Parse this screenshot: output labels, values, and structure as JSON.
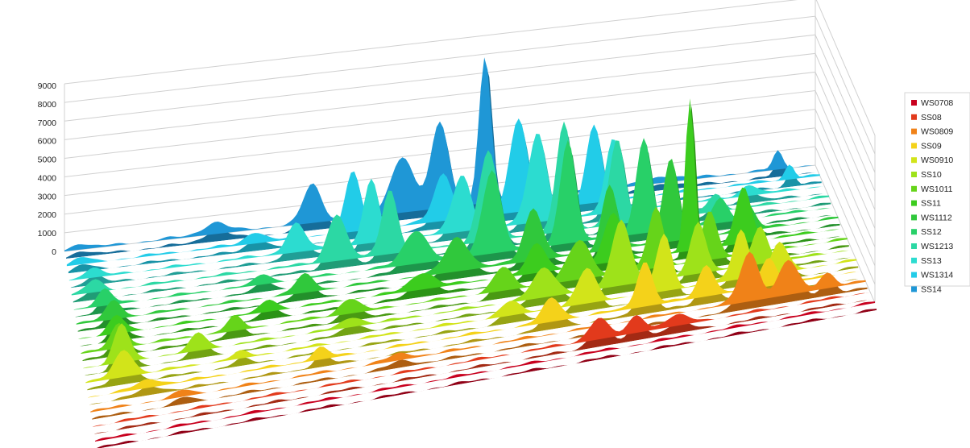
{
  "colors": {
    "WS0708": "#c8001e",
    "SS08": "#e23a1c",
    "WS0809": "#f08218",
    "SS09": "#f4d21a",
    "WS0910": "#d2e41a",
    "SS10": "#9ee21a",
    "WS1011": "#66d41a",
    "SS11": "#3ccc1e",
    "WS1112": "#30c83c",
    "SS12": "#28d068",
    "WS1213": "#2cd8a4",
    "SS13": "#2cdcd0",
    "WS1314": "#22cce8",
    "SS14": "#1f97d6"
  },
  "chart_data": {
    "type": "area",
    "subtype": "3d-ribbon",
    "title": "",
    "xlabel": "",
    "ylabel": "",
    "ylim": [
      0,
      9000
    ],
    "yticks": [
      0,
      1000,
      2000,
      3000,
      4000,
      5000,
      6000,
      7000,
      8000,
      9000
    ],
    "grid": true,
    "legend": "right",
    "series": [
      {
        "name": "WS0708",
        "peaks": []
      },
      {
        "name": "SS08",
        "peaks": [
          [
            0.65,
            1100,
            0.012
          ],
          [
            0.7,
            900,
            0.01
          ],
          [
            0.75,
            500,
            0.015
          ]
        ]
      },
      {
        "name": "WS0809",
        "peaks": [
          [
            0.12,
            300,
            0.01
          ],
          [
            0.4,
            300,
            0.015
          ],
          [
            0.85,
            2600,
            0.012
          ],
          [
            0.9,
            1800,
            0.012
          ],
          [
            0.95,
            800,
            0.01
          ]
        ]
      },
      {
        "name": "SS09",
        "peaks": [
          [
            0.08,
            400,
            0.015
          ],
          [
            0.3,
            600,
            0.01
          ],
          [
            0.6,
            1200,
            0.012
          ],
          [
            0.72,
            2400,
            0.01
          ],
          [
            0.8,
            1700,
            0.01
          ],
          [
            0.88,
            1500,
            0.01
          ]
        ]
      },
      {
        "name": "WS0910",
        "peaks": [
          [
            0.05,
            1400,
            0.012
          ],
          [
            0.2,
            300,
            0.01
          ],
          [
            0.55,
            700,
            0.012
          ],
          [
            0.65,
            1800,
            0.012
          ],
          [
            0.75,
            3000,
            0.01
          ],
          [
            0.85,
            2600,
            0.01
          ],
          [
            0.9,
            1600,
            0.01
          ]
        ]
      },
      {
        "name": "SS10",
        "peaks": [
          [
            0.05,
            2000,
            0.01
          ],
          [
            0.15,
            900,
            0.01
          ],
          [
            0.35,
            500,
            0.012
          ],
          [
            0.6,
            1500,
            0.015
          ],
          [
            0.7,
            3500,
            0.012
          ],
          [
            0.8,
            2800,
            0.01
          ],
          [
            0.88,
            2000,
            0.01
          ]
        ]
      },
      {
        "name": "WS1011",
        "peaks": [
          [
            0.05,
            1300,
            0.01
          ],
          [
            0.2,
            700,
            0.01
          ],
          [
            0.35,
            800,
            0.012
          ],
          [
            0.55,
            1200,
            0.012
          ],
          [
            0.65,
            2000,
            0.015
          ],
          [
            0.75,
            3200,
            0.01
          ],
          [
            0.82,
            2500,
            0.01
          ]
        ]
      },
      {
        "name": "SS11",
        "peaks": [
          [
            0.05,
            900,
            0.01
          ],
          [
            0.25,
            600,
            0.01
          ],
          [
            0.45,
            900,
            0.015
          ],
          [
            0.6,
            1500,
            0.012
          ],
          [
            0.7,
            2600,
            0.012
          ],
          [
            0.8,
            8200,
            0.006
          ],
          [
            0.87,
            3000,
            0.01
          ]
        ]
      },
      {
        "name": "WS1112",
        "peaks": [
          [
            0.05,
            1000,
            0.01
          ],
          [
            0.3,
            900,
            0.012
          ],
          [
            0.5,
            1800,
            0.015
          ],
          [
            0.6,
            2800,
            0.012
          ],
          [
            0.7,
            3500,
            0.01
          ],
          [
            0.78,
            4500,
            0.01
          ],
          [
            0.88,
            1400,
            0.01
          ]
        ]
      },
      {
        "name": "SS12",
        "peaks": [
          [
            0.04,
            800,
            0.01
          ],
          [
            0.25,
            500,
            0.01
          ],
          [
            0.45,
            1800,
            0.015
          ],
          [
            0.55,
            4500,
            0.012
          ],
          [
            0.65,
            5500,
            0.01
          ],
          [
            0.75,
            5000,
            0.01
          ],
          [
            0.85,
            1200,
            0.01
          ]
        ]
      },
      {
        "name": "WS1213",
        "peaks": [
          [
            0.03,
            600,
            0.01
          ],
          [
            0.35,
            2500,
            0.012
          ],
          [
            0.42,
            3500,
            0.01
          ],
          [
            0.55,
            4800,
            0.012
          ],
          [
            0.65,
            5800,
            0.01
          ],
          [
            0.72,
            4500,
            0.01
          ],
          [
            0.85,
            900,
            0.01
          ]
        ]
      },
      {
        "name": "SS13",
        "peaks": [
          [
            0.03,
            500,
            0.01
          ],
          [
            0.3,
            1500,
            0.012
          ],
          [
            0.4,
            3300,
            0.01
          ],
          [
            0.52,
            3000,
            0.012
          ],
          [
            0.62,
            4800,
            0.012
          ],
          [
            0.72,
            4000,
            0.01
          ],
          [
            0.9,
            600,
            0.01
          ]
        ]
      },
      {
        "name": "WS1314",
        "peaks": [
          [
            0.02,
            300,
            0.01
          ],
          [
            0.25,
            600,
            0.012
          ],
          [
            0.38,
            3200,
            0.01
          ],
          [
            0.5,
            2500,
            0.012
          ],
          [
            0.6,
            5000,
            0.012
          ],
          [
            0.7,
            4200,
            0.01
          ],
          [
            0.96,
            800,
            0.006
          ]
        ]
      },
      {
        "name": "SS14",
        "peaks": [
          [
            0.02,
            300,
            0.01
          ],
          [
            0.2,
            600,
            0.015
          ],
          [
            0.33,
            2000,
            0.012
          ],
          [
            0.45,
            3000,
            0.015
          ],
          [
            0.5,
            4500,
            0.012
          ],
          [
            0.56,
            7800,
            0.008
          ],
          [
            0.8,
            300,
            0.02
          ],
          [
            0.95,
            900,
            0.006
          ]
        ]
      }
    ]
  }
}
